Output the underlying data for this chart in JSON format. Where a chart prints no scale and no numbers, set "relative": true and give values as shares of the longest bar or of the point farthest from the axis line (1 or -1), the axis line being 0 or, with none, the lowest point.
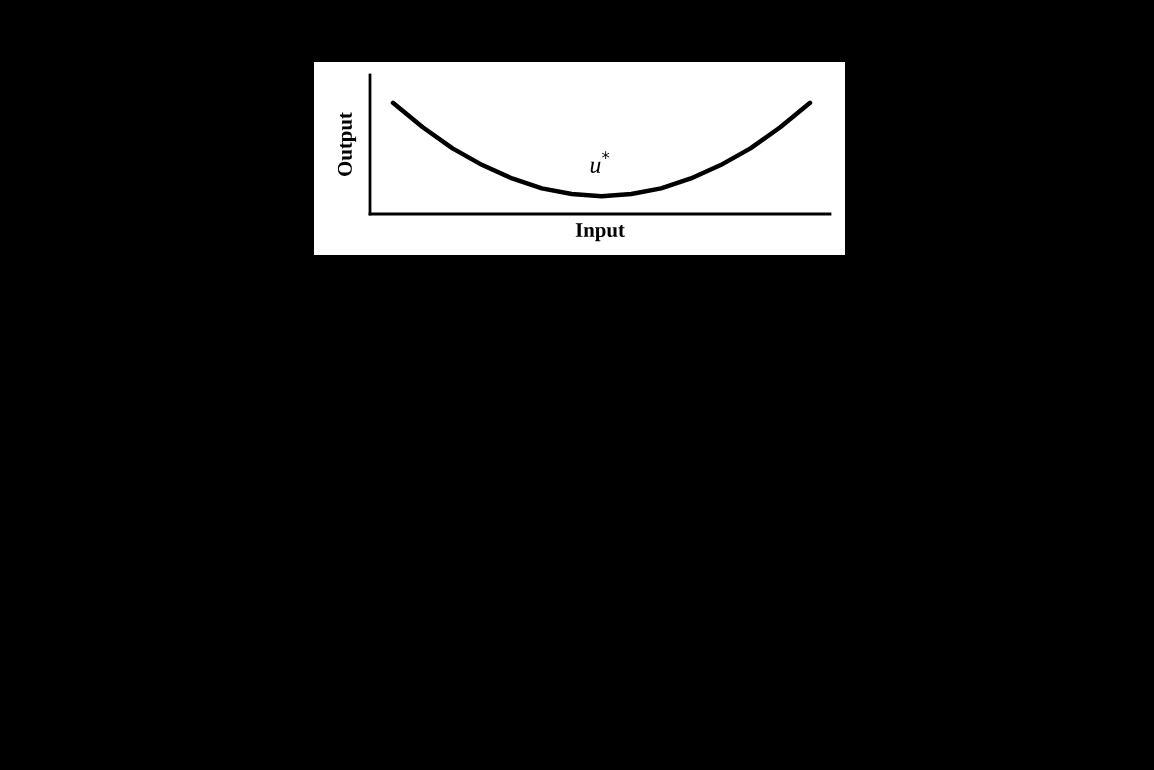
{
  "chart_data": {
    "type": "line",
    "relative": true,
    "xlabel": "Input",
    "ylabel": "Output",
    "categories": [
      null,
      null,
      null,
      null,
      null,
      null,
      null,
      null,
      null,
      null,
      null,
      null,
      null,
      null,
      null
    ],
    "series": [
      {
        "color": "#000000",
        "values": [
          1.0,
          0.78,
          0.59,
          0.44,
          0.32,
          0.23,
          0.18,
          0.16,
          0.18,
          0.23,
          0.32,
          0.44,
          0.59,
          0.78,
          1.0
        ]
      }
    ],
    "annotations": [
      "u$^{*}$"
    ],
    "marker": "none",
    "line_style": "solid"
  }
}
